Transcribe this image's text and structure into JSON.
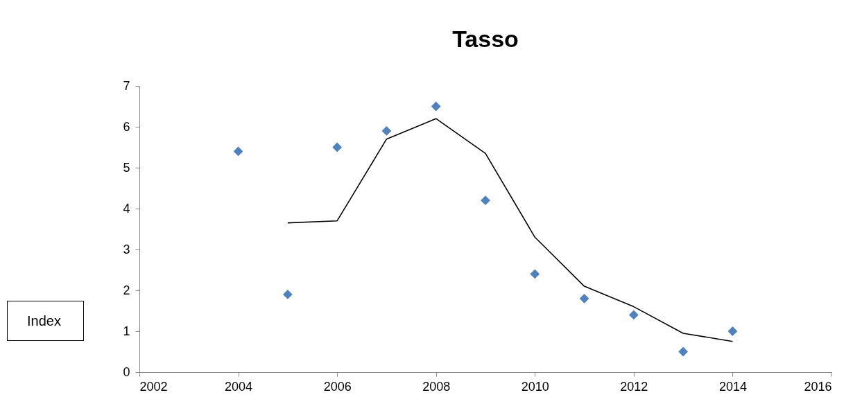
{
  "chart_data": {
    "type": "scatter",
    "title": "Tasso",
    "ylabel": "Index",
    "x": [
      2004,
      2005,
      2006,
      2007,
      2008,
      2009,
      2010,
      2011,
      2012,
      2013,
      2014
    ],
    "series": [
      {
        "color": "#4f81bd",
        "marker": "diamond",
        "values": [
          5.4,
          1.9,
          5.5,
          5.9,
          6.5,
          4.2,
          2.4,
          1.8,
          1.4,
          0.5,
          1.0
        ]
      },
      {
        "type": "line",
        "color": "#000000",
        "marker": "none",
        "x": [
          2005,
          2006,
          2007,
          2008,
          2009,
          2010,
          2011,
          2012,
          2013,
          2014
        ],
        "values": [
          3.65,
          3.7,
          5.7,
          6.2,
          5.35,
          3.3,
          2.1,
          1.6,
          0.95,
          0.75
        ]
      }
    ],
    "xlim": [
      2002,
      2016
    ],
    "xticks": [
      2002,
      2004,
      2006,
      2008,
      2010,
      2012,
      2014,
      2016
    ],
    "ylim": [
      0,
      7
    ],
    "yticks": [
      0,
      1,
      2,
      3,
      4,
      5,
      6,
      7
    ],
    "grid": false
  }
}
